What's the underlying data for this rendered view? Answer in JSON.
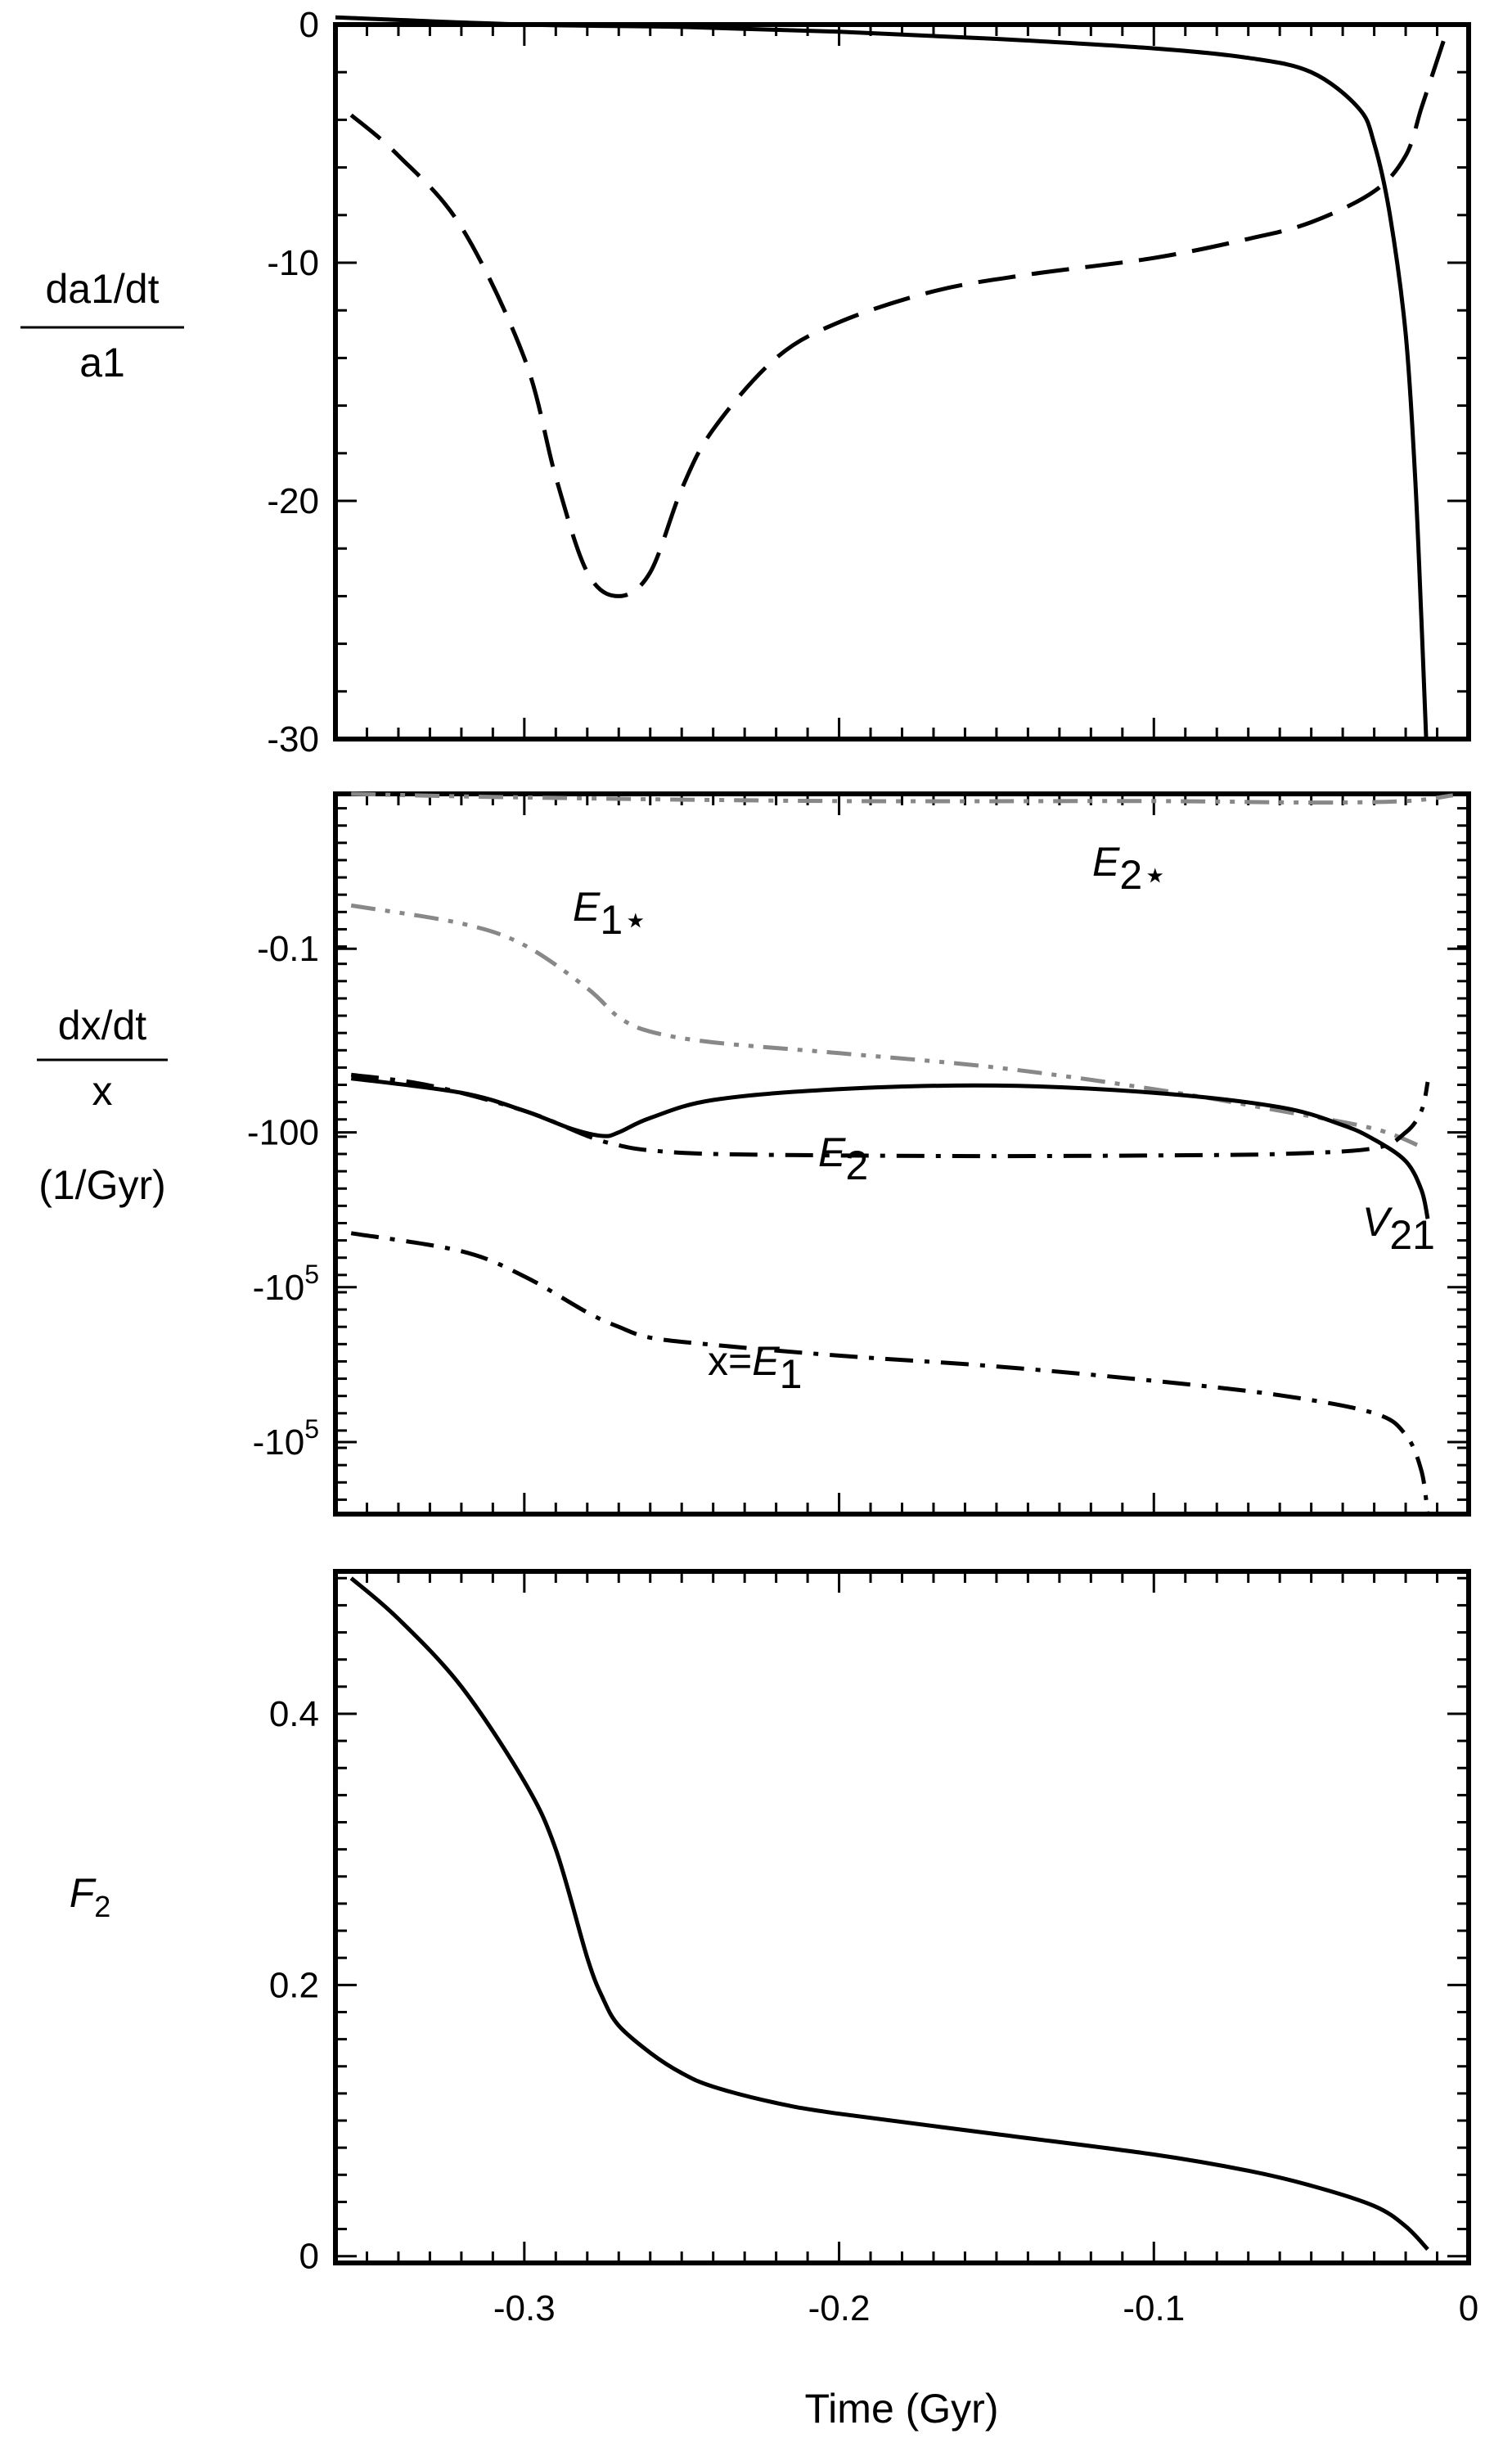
{
  "chart_data": [
    {
      "type": "line",
      "panel": "top",
      "ylabel": {
        "numerator": "da1/dt",
        "denominator": "a1"
      },
      "xlim": [
        -0.36,
        0.0
      ],
      "ylim": [
        -30,
        0
      ],
      "yticks": [
        {
          "value": 0,
          "label": "0"
        },
        {
          "value": -10,
          "label": "-10"
        },
        {
          "value": -20,
          "label": "-20"
        },
        {
          "value": -30,
          "label": "-30"
        }
      ],
      "series": [
        {
          "style": "solid",
          "color": "#000000",
          "x": [
            -0.36,
            -0.3,
            -0.25,
            -0.2,
            -0.15,
            -0.1,
            -0.07,
            -0.05,
            -0.035,
            -0.03,
            -0.025,
            -0.02,
            -0.017,
            -0.015,
            -0.0135
          ],
          "y": [
            0.3,
            0.0,
            -0.1,
            -0.3,
            -0.6,
            -1.0,
            -1.4,
            -2.0,
            -3.5,
            -5.0,
            -8.0,
            -13.0,
            -19.0,
            -25.0,
            -30.0
          ]
        },
        {
          "style": "dashed",
          "color": "#000000",
          "x": [
            -0.355,
            -0.34,
            -0.32,
            -0.3,
            -0.29,
            -0.28,
            -0.27,
            -0.26,
            -0.25,
            -0.24,
            -0.22,
            -0.2,
            -0.17,
            -0.14,
            -0.1,
            -0.07,
            -0.05,
            -0.03,
            -0.02,
            -0.015,
            -0.01,
            -0.007
          ],
          "y": [
            -3.8,
            -5.5,
            -8.5,
            -14.0,
            -19.0,
            -23.0,
            -24.0,
            -23.0,
            -19.5,
            -17.0,
            -14.0,
            -12.5,
            -11.2,
            -10.5,
            -9.8,
            -9.0,
            -8.3,
            -7.0,
            -5.5,
            -3.5,
            -1.5,
            -0.3
          ]
        }
      ]
    },
    {
      "type": "line",
      "panel": "middle",
      "ylabel": {
        "numerator": "dx/dt",
        "denominator": "x",
        "units": "(1/Gyr)"
      },
      "xlim": [
        -0.36,
        0.0
      ],
      "yticks": [
        {
          "label": "-0.1",
          "exponent": ""
        },
        {
          "label": "-100",
          "exponent": ""
        },
        {
          "label": "-10",
          "exponent": "5"
        },
        {
          "label": "-10",
          "exponent": "5"
        }
      ],
      "annotations": [
        {
          "text": "E",
          "sub": "1⋆"
        },
        {
          "text": "E",
          "sub": "2⋆"
        },
        {
          "text": "E",
          "sub": "2"
        },
        {
          "text": "V",
          "sub": "21"
        },
        {
          "text": "x=E",
          "sub": "1"
        }
      ],
      "series": [
        {
          "label": "E2*",
          "style": "dash-dot-dot",
          "color": "#888888",
          "x": [
            -0.355,
            -0.3,
            -0.2,
            -0.1,
            -0.05,
            -0.02,
            -0.005
          ],
          "y_level": [
            1.0,
            0.995,
            0.99,
            0.99,
            0.988,
            0.99,
            0.998
          ]
        },
        {
          "label": "E1*",
          "style": "dash-dot-dot",
          "color": "#888888",
          "x": [
            -0.355,
            -0.32,
            -0.3,
            -0.28,
            -0.27,
            -0.26,
            -0.24,
            -0.2,
            -0.15,
            -0.1,
            -0.06,
            -0.03,
            -0.015
          ],
          "y_level": [
            0.845,
            0.82,
            0.79,
            0.73,
            0.69,
            0.67,
            0.655,
            0.64,
            0.62,
            0.59,
            0.56,
            0.535,
            0.51
          ]
        },
        {
          "label": "V21",
          "style": "solid",
          "color": "#000000",
          "x": [
            -0.355,
            -0.32,
            -0.3,
            -0.285,
            -0.275,
            -0.27,
            -0.26,
            -0.24,
            -0.2,
            -0.15,
            -0.1,
            -0.06,
            -0.04,
            -0.03,
            -0.02,
            -0.015,
            -0.013
          ],
          "y_level": [
            0.605,
            0.585,
            0.56,
            0.535,
            0.525,
            0.53,
            0.55,
            0.575,
            0.59,
            0.595,
            0.585,
            0.565,
            0.54,
            0.52,
            0.49,
            0.45,
            0.41
          ]
        },
        {
          "label": "E2",
          "style": "dash-dot",
          "color": "#000000",
          "x": [
            -0.355,
            -0.33,
            -0.3,
            -0.28,
            -0.27,
            -0.26,
            -0.24,
            -0.2,
            -0.15,
            -0.1,
            -0.06,
            -0.03,
            -0.02,
            -0.015,
            -0.013
          ],
          "y_level": [
            0.61,
            0.595,
            0.56,
            0.525,
            0.512,
            0.505,
            0.5,
            0.498,
            0.497,
            0.498,
            0.5,
            0.508,
            0.53,
            0.56,
            0.6
          ]
        },
        {
          "label": "E1",
          "style": "dash-dot",
          "color": "#000000",
          "x": [
            -0.355,
            -0.32,
            -0.3,
            -0.28,
            -0.27,
            -0.26,
            -0.24,
            -0.2,
            -0.15,
            -0.1,
            -0.06,
            -0.03,
            -0.02,
            -0.015,
            -0.013
          ],
          "y_level": [
            0.39,
            0.365,
            0.33,
            0.28,
            0.26,
            0.245,
            0.235,
            0.22,
            0.205,
            0.185,
            0.165,
            0.14,
            0.11,
            0.06,
            0.0
          ]
        }
      ]
    },
    {
      "type": "line",
      "panel": "bottom",
      "ylabel": {
        "text": "F",
        "sub": "2"
      },
      "xlabel": "Time (Gyr)",
      "xlim": [
        -0.36,
        0.0
      ],
      "ylim": [
        -0.005,
        0.505
      ],
      "yticks": [
        {
          "value": 0,
          "label": "0"
        },
        {
          "value": 0.2,
          "label": "0.2"
        },
        {
          "value": 0.4,
          "label": "0.4"
        }
      ],
      "xticks": [
        {
          "value": -0.3,
          "label": "-0.3"
        },
        {
          "value": -0.2,
          "label": "-0.2"
        },
        {
          "value": -0.1,
          "label": "-0.1"
        },
        {
          "value": 0,
          "label": "0"
        }
      ],
      "series": [
        {
          "style": "solid",
          "color": "#000000",
          "x": [
            -0.355,
            -0.34,
            -0.32,
            -0.3,
            -0.29,
            -0.28,
            -0.275,
            -0.27,
            -0.26,
            -0.25,
            -0.24,
            -0.22,
            -0.2,
            -0.15,
            -0.1,
            -0.07,
            -0.05,
            -0.03,
            -0.02,
            -0.013
          ],
          "y": [
            0.5,
            0.47,
            0.42,
            0.35,
            0.3,
            0.22,
            0.19,
            0.17,
            0.15,
            0.135,
            0.125,
            0.113,
            0.105,
            0.09,
            0.075,
            0.063,
            0.052,
            0.037,
            0.022,
            0.005
          ]
        }
      ]
    }
  ]
}
